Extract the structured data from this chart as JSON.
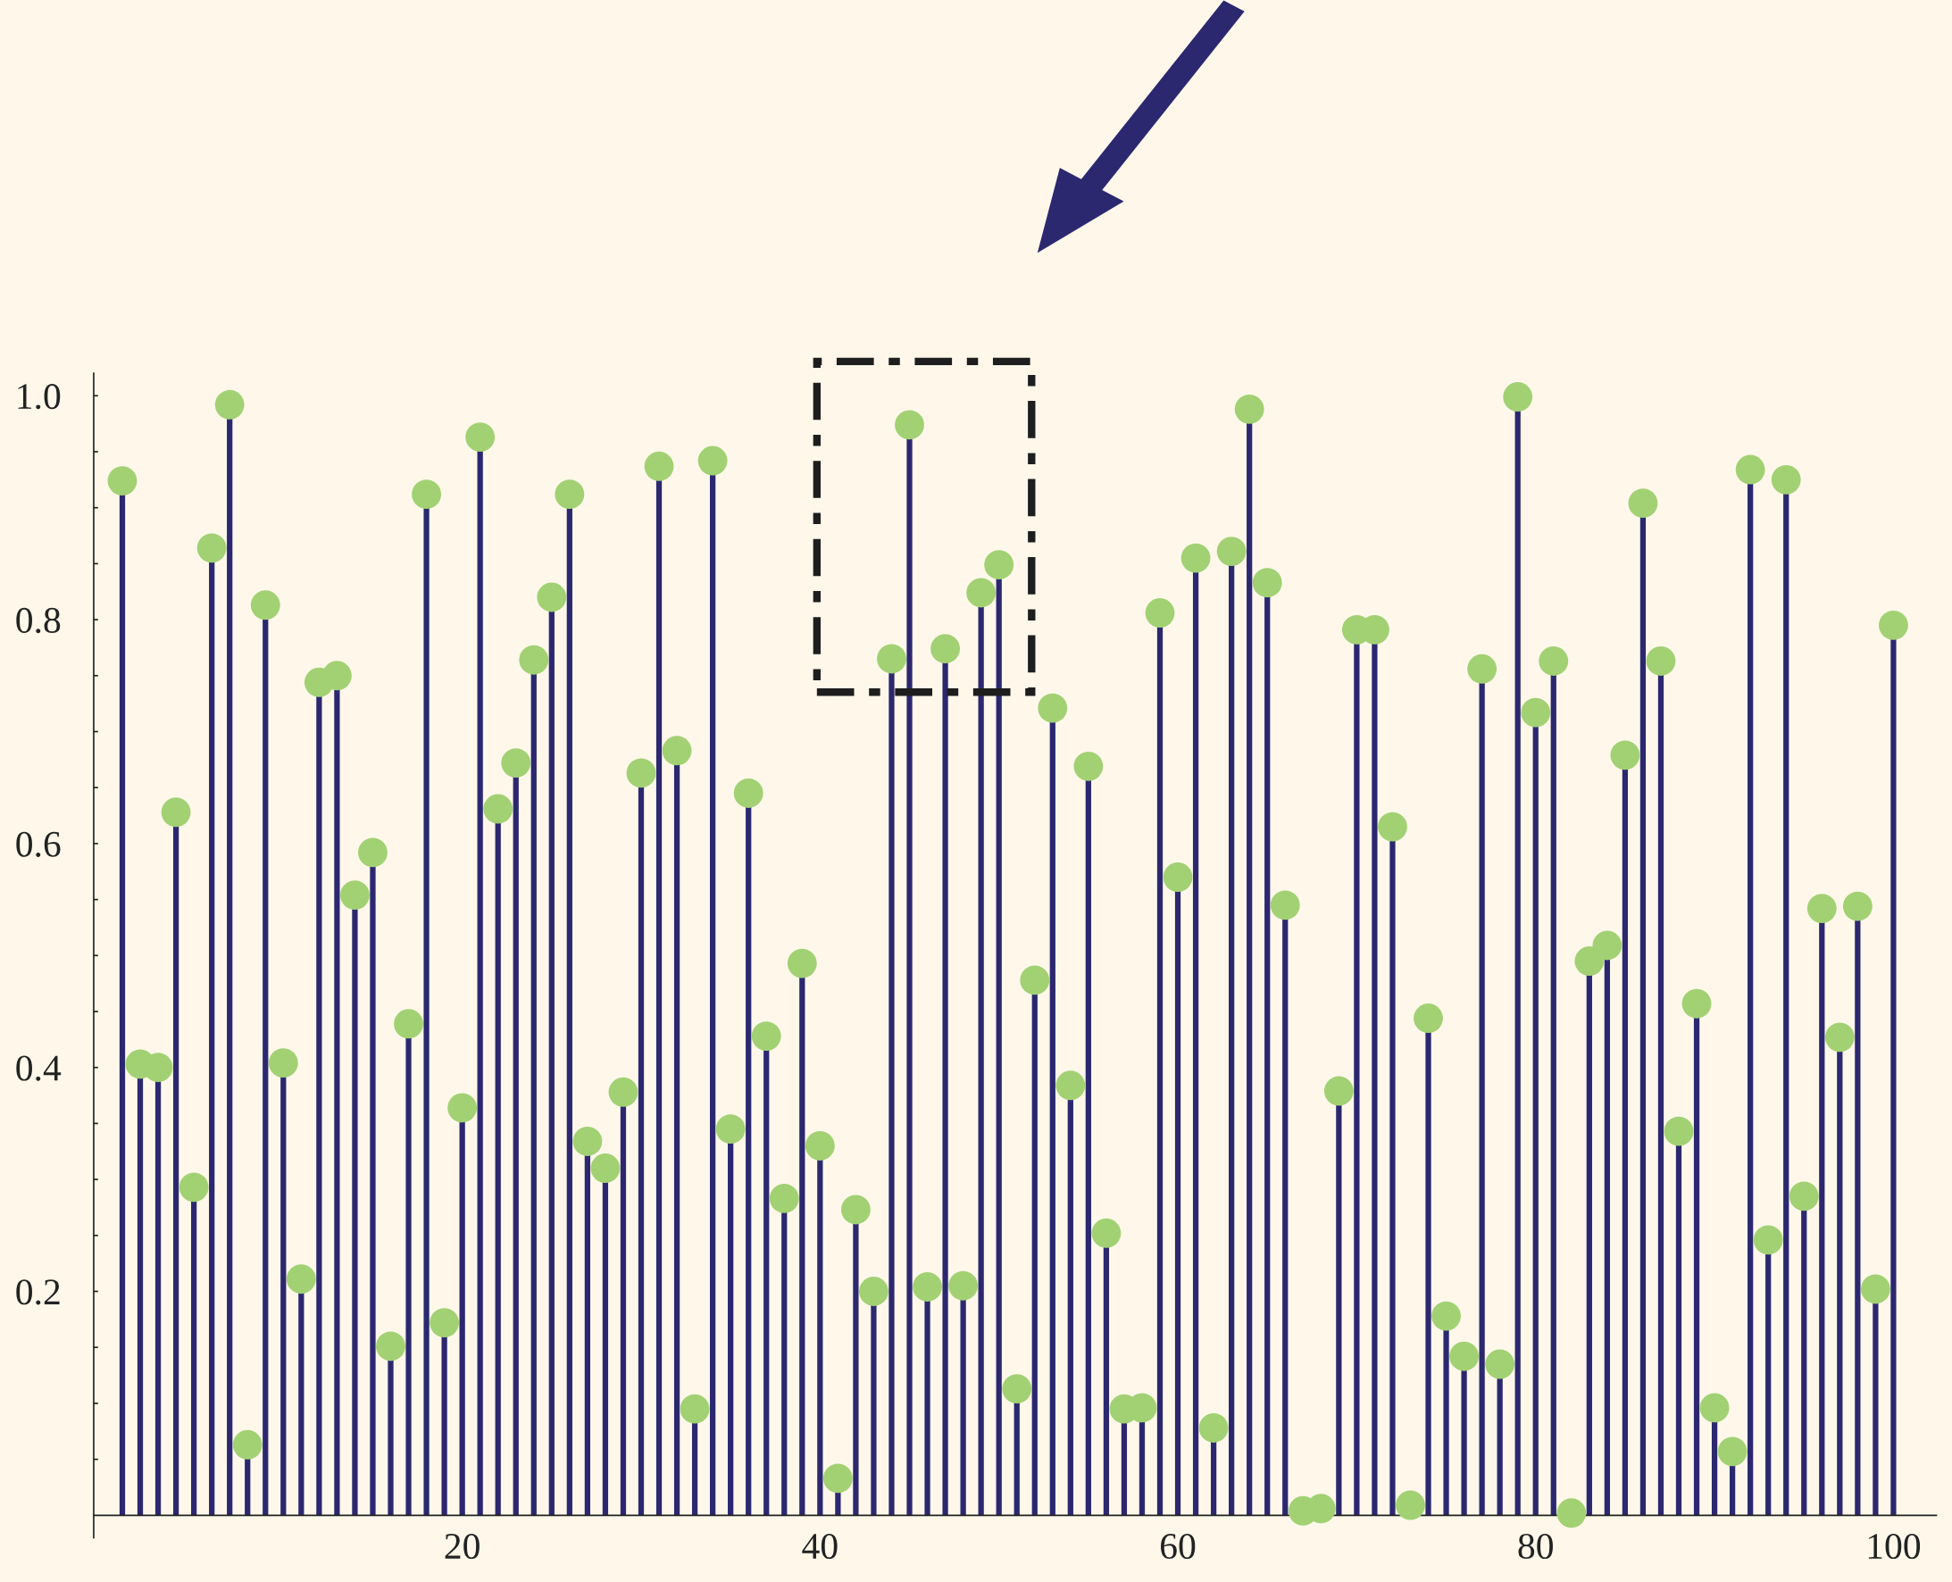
{
  "chart_data": {
    "type": "lollipop",
    "marker": "circle",
    "grid": false,
    "legend": false,
    "xlim": [
      -0.6,
      102.4
    ],
    "ylim": [
      -0.02,
      1.02
    ],
    "xticks": [
      20,
      40,
      60,
      80,
      100
    ],
    "yticks": [
      {
        "value": 0.05,
        "label": null
      },
      {
        "value": 0.1,
        "label": null
      },
      {
        "value": 0.15,
        "label": null
      },
      {
        "value": 0.2,
        "label": "0.2"
      },
      {
        "value": 0.25,
        "label": null
      },
      {
        "value": 0.3,
        "label": null
      },
      {
        "value": 0.35,
        "label": null
      },
      {
        "value": 0.4,
        "label": "0.4"
      },
      {
        "value": 0.45,
        "label": null
      },
      {
        "value": 0.5,
        "label": null
      },
      {
        "value": 0.55,
        "label": null
      },
      {
        "value": 0.6,
        "label": "0.6"
      },
      {
        "value": 0.65,
        "label": null
      },
      {
        "value": 0.7,
        "label": null
      },
      {
        "value": 0.75,
        "label": null
      },
      {
        "value": 0.8,
        "label": "0.8"
      },
      {
        "value": 0.85,
        "label": null
      },
      {
        "value": 0.9,
        "label": null
      },
      {
        "value": 0.95,
        "label": null
      },
      {
        "value": 1.0,
        "label": "1.0"
      }
    ],
    "x": [
      1,
      2,
      3,
      4,
      5,
      6,
      7,
      8,
      9,
      10,
      11,
      12,
      13,
      14,
      15,
      16,
      17,
      18,
      19,
      20,
      21,
      22,
      23,
      24,
      25,
      26,
      27,
      28,
      29,
      30,
      31,
      32,
      33,
      34,
      35,
      36,
      37,
      38,
      39,
      40,
      41,
      42,
      43,
      44,
      45,
      46,
      47,
      48,
      49,
      50,
      51,
      52,
      53,
      54,
      55,
      56,
      57,
      58,
      59,
      60,
      61,
      62,
      63,
      64,
      65,
      66,
      67,
      68,
      69,
      70,
      71,
      72,
      73,
      74,
      75,
      76,
      77,
      78,
      79,
      80,
      81,
      82,
      83,
      84,
      85,
      86,
      87,
      88,
      89,
      90,
      91,
      92,
      93,
      94,
      95,
      96,
      97,
      98,
      99,
      100
    ],
    "series": [
      {
        "color": "#a2d173",
        "values": [
          0.924,
          0.403,
          0.4,
          0.628,
          0.293,
          0.864,
          0.992,
          0.063,
          0.813,
          0.404,
          0.211,
          0.744,
          0.75,
          0.554,
          0.592,
          0.151,
          0.439,
          0.912,
          0.172,
          0.364,
          0.963,
          0.631,
          0.672,
          0.764,
          0.82,
          0.912,
          0.334,
          0.31,
          0.378,
          0.663,
          0.937,
          0.683,
          0.095,
          0.942,
          0.345,
          0.645,
          0.428,
          0.283,
          0.493,
          0.33,
          0.033,
          0.273,
          0.2,
          0.765,
          0.974,
          0.204,
          0.774,
          0.205,
          0.824,
          0.849,
          0.113,
          0.478,
          0.721,
          0.384,
          0.669,
          0.252,
          0.095,
          0.096,
          0.806,
          0.57,
          0.855,
          0.078,
          0.861,
          0.988,
          0.833,
          0.545,
          0.004,
          0.006,
          0.379,
          0.791,
          0.791,
          0.615,
          0.009,
          0.444,
          0.178,
          0.142,
          0.756,
          0.135,
          0.999,
          0.717,
          0.763,
          0.002,
          0.495,
          0.509,
          0.679,
          0.904,
          0.763,
          0.343,
          0.457,
          0.096,
          0.057,
          0.934,
          0.246,
          0.925,
          0.285,
          0.542,
          0.427,
          0.544,
          0.202,
          0.795
        ]
      }
    ]
  }
}
